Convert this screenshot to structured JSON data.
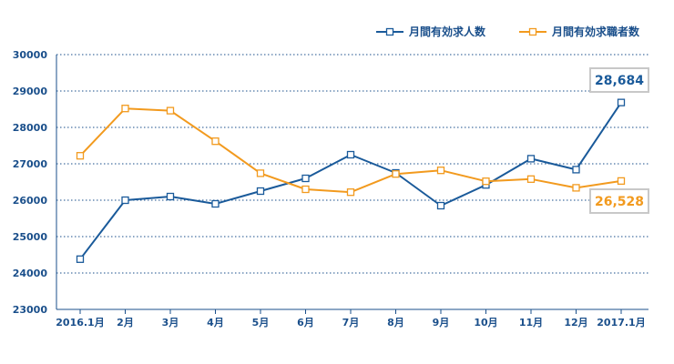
{
  "chart_data": {
    "type": "line",
    "title": "",
    "xlabel": "",
    "ylabel": "",
    "categories": [
      "2016.1月",
      "2月",
      "3月",
      "4月",
      "5月",
      "6月",
      "7月",
      "8月",
      "9月",
      "10月",
      "11月",
      "12月",
      "2017.1月"
    ],
    "ylim": [
      23000,
      30000
    ],
    "yticks": [
      23000,
      24000,
      25000,
      26000,
      27000,
      28000,
      29000,
      30000
    ],
    "grid": "horizontal dotted",
    "legend_position": "top-right",
    "series": [
      {
        "name": "月間有効求人数",
        "color": "#1a5a9a",
        "values": [
          24380,
          26000,
          26100,
          25900,
          26250,
          26600,
          27250,
          26750,
          25850,
          26420,
          27140,
          26840,
          28684
        ]
      },
      {
        "name": "月間有効求職者数",
        "color": "#f29a1e",
        "values": [
          27220,
          28520,
          28460,
          27620,
          26740,
          26300,
          26220,
          26720,
          26820,
          26520,
          26580,
          26340,
          26528
        ]
      }
    ],
    "annotations": [
      {
        "series": 0,
        "text": "28,684",
        "color": "#1a5a9a"
      },
      {
        "series": 1,
        "text": "26,528",
        "color": "#f29a1e"
      }
    ]
  }
}
